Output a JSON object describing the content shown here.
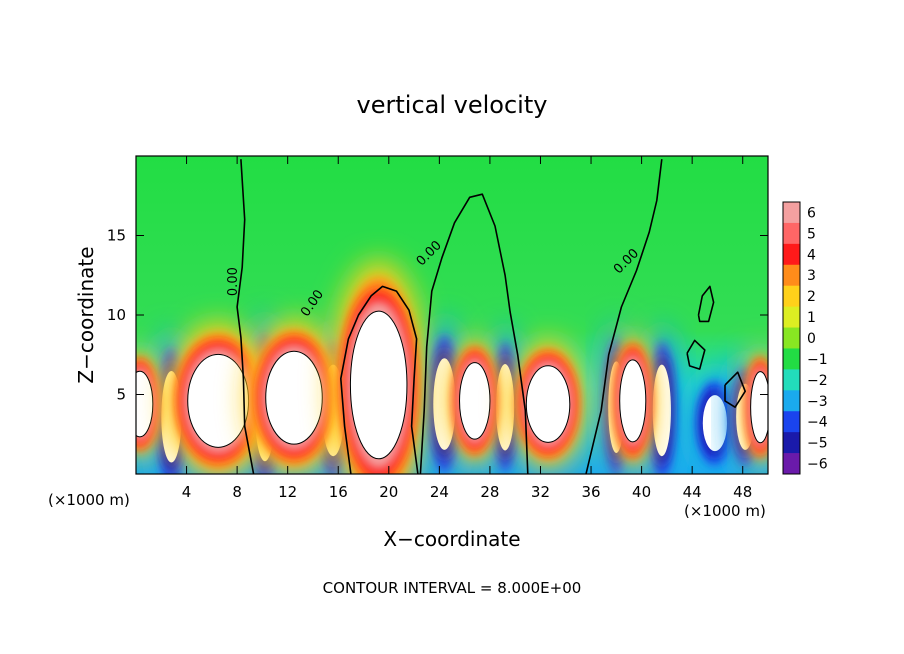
{
  "chart_data": {
    "type": "heatmap",
    "title": "vertical velocity",
    "xlabel": "X−coordinate",
    "ylabel": "Z−coordinate",
    "x_unit": "(×1000 m)",
    "y_unit": "(×1000 m)",
    "xlim": [
      0,
      50
    ],
    "ylim": [
      0,
      20
    ],
    "x_ticks": [
      4,
      8,
      12,
      16,
      20,
      24,
      28,
      32,
      36,
      40,
      44,
      48
    ],
    "y_ticks": [
      5,
      10,
      15
    ],
    "colorbar": {
      "levels": [
        "6",
        "5",
        "4",
        "3",
        "2",
        "1",
        "0",
        "−1",
        "−2",
        "−3",
        "−4",
        "−5",
        "−6"
      ],
      "colors": [
        "#f4a0a0",
        "#ff6666",
        "#ff1a1a",
        "#ff8c1a",
        "#ffd11a",
        "#ddee22",
        "#88e622",
        "#22dd44",
        "#22ddbb",
        "#1aaaee",
        "#1a44ee",
        "#1a1aaa",
        "#6a1aaa"
      ]
    },
    "contour_labels": [
      "0.00",
      "0.00",
      "0.00",
      "0.00"
    ],
    "contour_interval_text": "CONTOUR INTERVAL = 8.000E+00",
    "updrafts": [
      {
        "x": 0.3,
        "z": 4.4,
        "w": 1.2,
        "h": 2.4
      },
      {
        "x": 6.5,
        "z": 4.6,
        "w": 2.8,
        "h": 3.4
      },
      {
        "x": 12.5,
        "z": 4.8,
        "w": 2.6,
        "h": 3.4
      },
      {
        "x": 19.2,
        "z": 5.6,
        "w": 2.6,
        "h": 5.4
      },
      {
        "x": 26.8,
        "z": 4.6,
        "w": 1.4,
        "h": 2.8
      },
      {
        "x": 32.6,
        "z": 4.4,
        "w": 2.0,
        "h": 2.8
      },
      {
        "x": 39.3,
        "z": 4.6,
        "w": 1.2,
        "h": 3.0
      },
      {
        "x": 49.4,
        "z": 4.2,
        "w": 0.9,
        "h": 2.6
      }
    ],
    "downdrafts": [
      {
        "x": 2.8,
        "z": 3.6,
        "w": 1.0,
        "h": 3.6
      },
      {
        "x": 10.2,
        "z": 4.0,
        "w": 1.0,
        "h": 4.0
      },
      {
        "x": 15.6,
        "z": 4.0,
        "w": 1.1,
        "h": 3.6
      },
      {
        "x": 24.4,
        "z": 4.4,
        "w": 1.1,
        "h": 3.6
      },
      {
        "x": 29.2,
        "z": 4.2,
        "w": 0.9,
        "h": 3.4
      },
      {
        "x": 38.0,
        "z": 4.2,
        "w": 0.8,
        "h": 3.6
      },
      {
        "x": 41.6,
        "z": 4.0,
        "w": 0.9,
        "h": 3.6
      },
      {
        "x": 45.8,
        "z": 3.2,
        "w": 1.2,
        "h": 2.2
      },
      {
        "x": 48.2,
        "z": 3.6,
        "w": 0.9,
        "h": 2.6
      }
    ],
    "zero_contours": [
      [
        [
          9.3,
          0
        ],
        [
          8.6,
          3
        ],
        [
          8.5,
          6
        ],
        [
          8.3,
          8.6
        ],
        [
          8.0,
          10.5
        ],
        [
          8.4,
          13
        ],
        [
          8.6,
          16
        ],
        [
          8.3,
          19.8
        ]
      ],
      [
        [
          17,
          0
        ],
        [
          16.5,
          3
        ],
        [
          16.2,
          6
        ],
        [
          16.8,
          8.5
        ],
        [
          17.6,
          10
        ],
        [
          18.6,
          11.2
        ],
        [
          19.5,
          11.8
        ],
        [
          20.6,
          11.5
        ],
        [
          21.6,
          10.3
        ],
        [
          22.2,
          8.5
        ],
        [
          22.0,
          6
        ],
        [
          21.8,
          3
        ],
        [
          22.3,
          0
        ]
      ],
      [
        [
          22.5,
          0
        ],
        [
          22.8,
          4
        ],
        [
          23.0,
          8
        ],
        [
          23.4,
          11.5
        ],
        [
          24.2,
          13.6
        ],
        [
          25.2,
          15.8
        ],
        [
          26.4,
          17.4
        ],
        [
          27.4,
          17.6
        ],
        [
          28.4,
          15.6
        ],
        [
          29.2,
          12.5
        ],
        [
          29.6,
          10.2
        ],
        [
          30.2,
          7.5
        ],
        [
          30.8,
          4
        ],
        [
          31.0,
          0
        ]
      ],
      [
        [
          35.6,
          0
        ],
        [
          36.8,
          4
        ],
        [
          37.4,
          7.5
        ],
        [
          38.4,
          10.5
        ],
        [
          39.6,
          12.8
        ],
        [
          40.6,
          15.2
        ],
        [
          41.2,
          17.2
        ],
        [
          41.6,
          19.8
        ]
      ],
      [
        [
          44.5,
          10.0
        ],
        [
          44.8,
          11.2
        ],
        [
          45.4,
          11.8
        ],
        [
          45.7,
          10.8
        ],
        [
          45.3,
          9.6
        ],
        [
          44.6,
          9.6
        ],
        [
          44.5,
          10.0
        ]
      ],
      [
        [
          43.6,
          7.6
        ],
        [
          44.2,
          8.4
        ],
        [
          45.0,
          7.8
        ],
        [
          44.6,
          6.6
        ],
        [
          43.8,
          6.8
        ],
        [
          43.6,
          7.6
        ]
      ],
      [
        [
          46.6,
          5.6
        ],
        [
          47.6,
          6.4
        ],
        [
          48.2,
          5.2
        ],
        [
          47.4,
          4.2
        ],
        [
          46.6,
          4.6
        ],
        [
          46.6,
          5.6
        ]
      ]
    ],
    "contour_label_positions": [
      {
        "x": 8.0,
        "z": 12.1,
        "angle": -90
      },
      {
        "x": 14.2,
        "z": 10.6,
        "angle": -55
      },
      {
        "x": 23.4,
        "z": 13.7,
        "angle": -45
      },
      {
        "x": 39.0,
        "z": 13.2,
        "angle": -45
      }
    ]
  }
}
